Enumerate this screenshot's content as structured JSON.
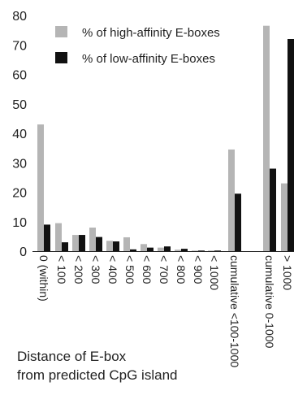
{
  "chart_data": {
    "type": "bar",
    "categories": [
      "0 (within)",
      "< 100",
      "< 200",
      "< 300",
      "< 400",
      "< 500",
      "< 600",
      "< 700",
      "< 800",
      "< 900",
      "< 1000",
      "cumulative <100-1000",
      "cumulative 0-1000",
      "> 1000"
    ],
    "series": [
      {
        "name": "% of high-affinity E-boxes",
        "color": "#b5b5b5",
        "values": [
          43,
          9.5,
          5.5,
          8,
          3.5,
          4.7,
          2.4,
          1.2,
          0.5,
          0.2,
          0.2,
          34.5,
          76.5,
          23
        ]
      },
      {
        "name": "% of low-affinity E-boxes",
        "color": "#111111",
        "values": [
          9,
          3,
          5.5,
          4.8,
          3.3,
          0.6,
          1.2,
          1.6,
          0.8,
          0.2,
          0.2,
          19.5,
          28,
          72
        ]
      }
    ],
    "yticks": [
      "0",
      "10",
      "20",
      "30",
      "40",
      "50",
      "60",
      "70",
      "80"
    ],
    "ylim": [
      0,
      80
    ],
    "xlabel_lines": [
      "Distance of E-box",
      "from predicted CpG island"
    ],
    "ylabel": "",
    "title": "",
    "legend_position": "top-left",
    "grid": false
  }
}
